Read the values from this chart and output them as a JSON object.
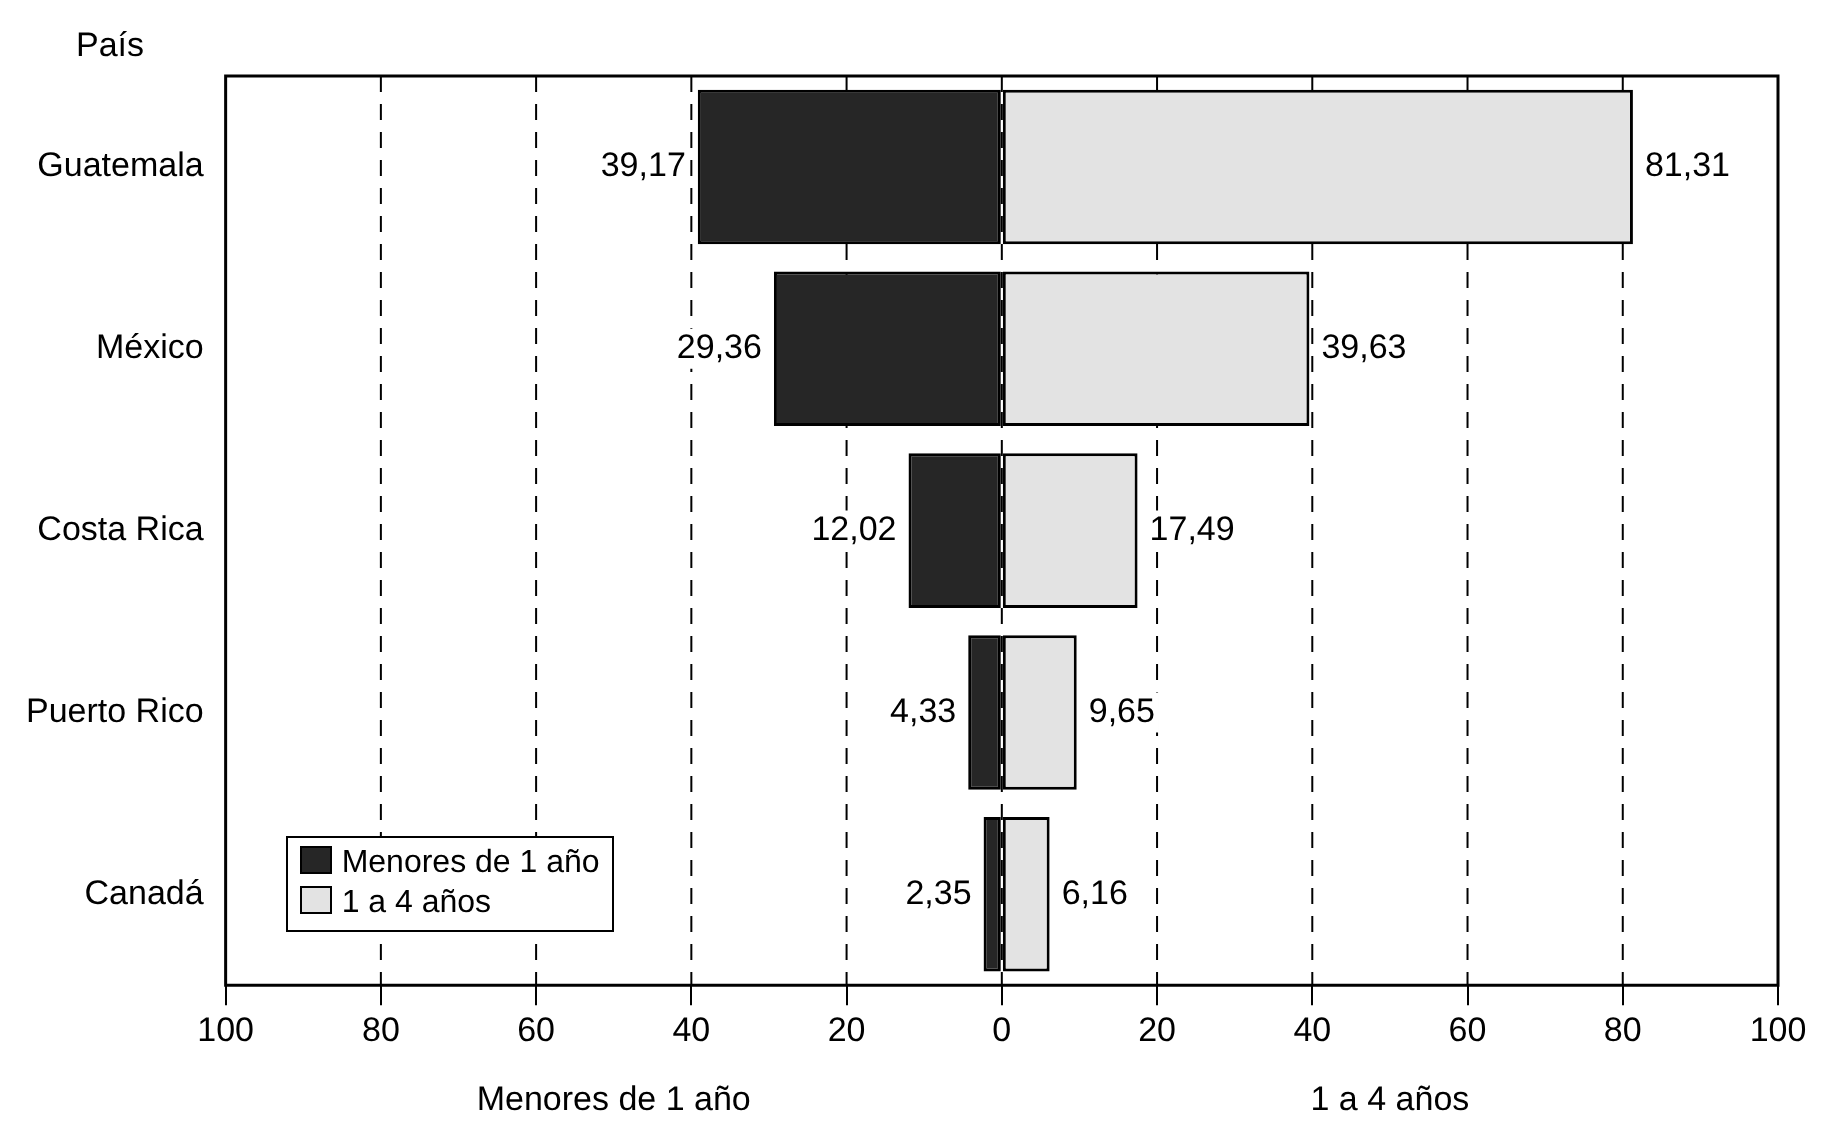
{
  "chart_data": {
    "type": "bar",
    "orientation": "horizontal",
    "ylabel": "País",
    "categories": [
      "Guatemala",
      "México",
      "Costa Rica",
      "Puerto Rico",
      "Canadá"
    ],
    "series": [
      {
        "name": "Menores de 1 año",
        "color": "#262626",
        "base": [
          -39.17,
          -29.36,
          -12.02,
          -4.33,
          -2.35
        ],
        "values": [
          39.17,
          29.36,
          12.02,
          4.33,
          2.35
        ],
        "value_labels": [
          "39,17",
          "29,36",
          "12,02",
          "4,33",
          "2,35"
        ]
      },
      {
        "name": "1 a 4 años",
        "color": "#e3e3e3",
        "values": [
          81.31,
          39.63,
          17.49,
          9.65,
          6.16
        ],
        "value_labels": [
          "81,31",
          "39,63",
          "17,49",
          "9,65",
          "6,16"
        ]
      }
    ],
    "xlim": [
      -100,
      100
    ],
    "xticks": [
      {
        "value": -100,
        "label": "100"
      },
      {
        "value": -80,
        "label": "80"
      },
      {
        "value": -60,
        "label": "60"
      },
      {
        "value": -40,
        "label": "40"
      },
      {
        "value": -20,
        "label": "20"
      },
      0,
      20,
      40,
      60,
      80,
      100
    ],
    "grid": "x",
    "legend": "bottom left",
    "annotations": [
      "Menores de 1 año",
      "1 a 4 años"
    ]
  }
}
